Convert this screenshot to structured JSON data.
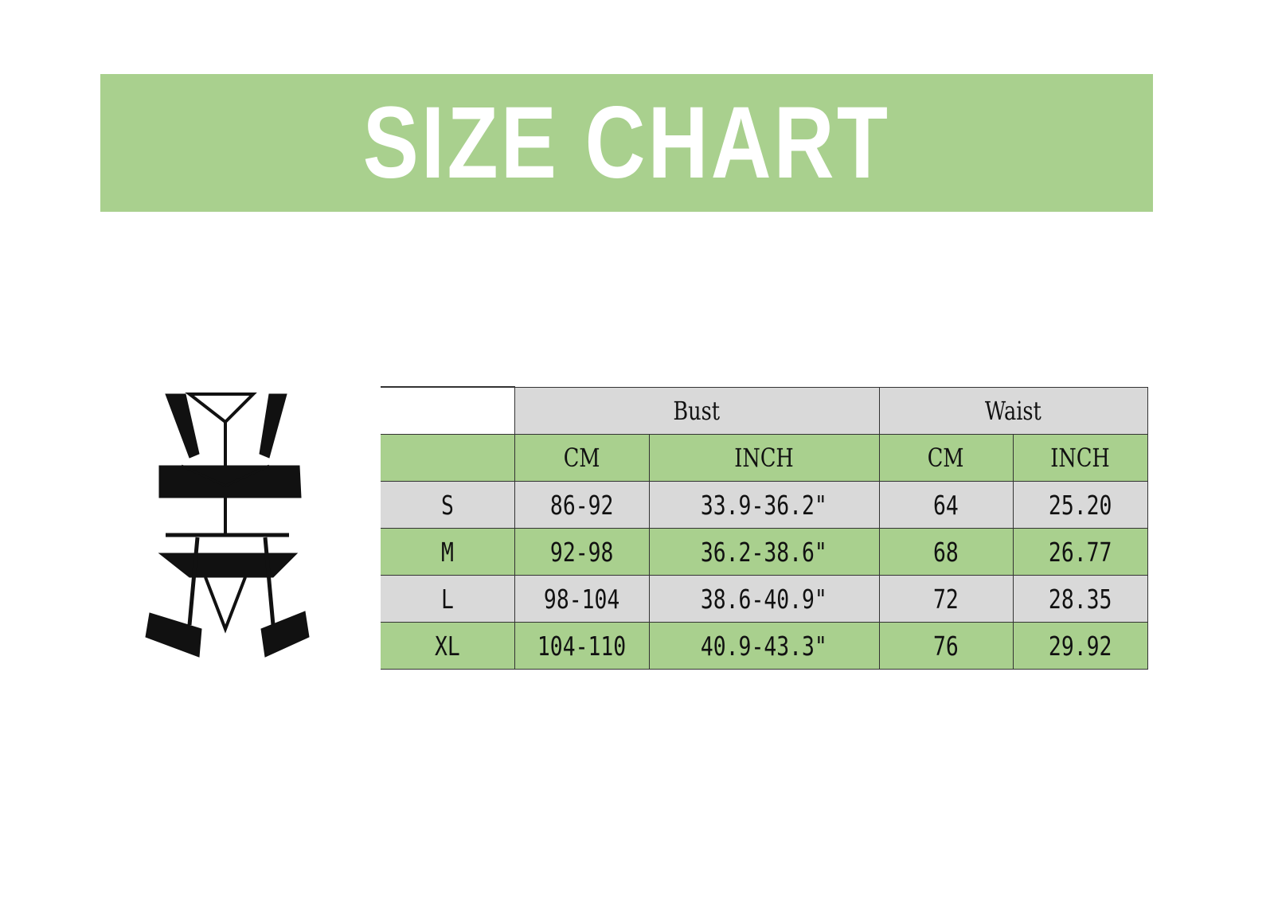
{
  "title": "SIZE CHART",
  "colors": {
    "banner": "#a9d08e",
    "row_green": "#a9d08e",
    "row_grey": "#d9d9d9"
  },
  "product_image": "lingerie-set-icon",
  "chart_data": {
    "type": "table",
    "group_headers": [
      "Bust",
      "Waist"
    ],
    "sub_headers": [
      "CM",
      "INCH",
      "CM",
      "INCH"
    ],
    "rows": [
      {
        "size": "S",
        "bust_cm": "86-92",
        "bust_inch": "33.9-36.2\"",
        "waist_cm": "64",
        "waist_inch": "25.20"
      },
      {
        "size": "M",
        "bust_cm": "92-98",
        "bust_inch": "36.2-38.6\"",
        "waist_cm": "68",
        "waist_inch": "26.77"
      },
      {
        "size": "L",
        "bust_cm": "98-104",
        "bust_inch": "38.6-40.9\"",
        "waist_cm": "72",
        "waist_inch": "28.35"
      },
      {
        "size": "XL",
        "bust_cm": "104-110",
        "bust_inch": "40.9-43.3\"",
        "waist_cm": "76",
        "waist_inch": "29.92"
      }
    ]
  }
}
